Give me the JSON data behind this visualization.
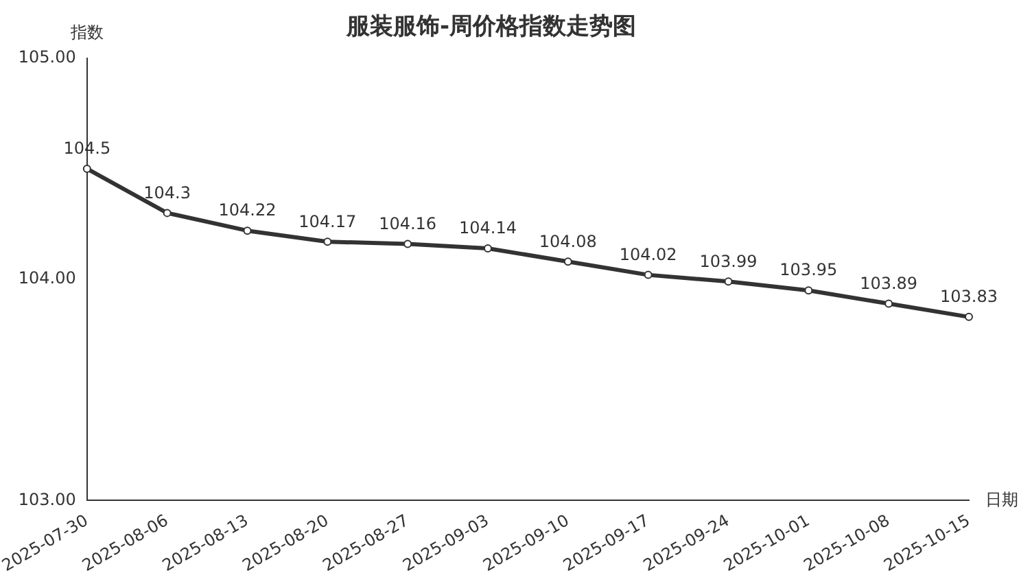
{
  "chart_data": {
    "type": "line",
    "title": "服装服饰-周价格指数走势图",
    "xlabel": "日期",
    "ylabel": "指数",
    "categories": [
      "2025-07-30",
      "2025-08-06",
      "2025-08-13",
      "2025-08-20",
      "2025-08-27",
      "2025-09-03",
      "2025-09-10",
      "2025-09-17",
      "2025-09-24",
      "2025-10-01",
      "2025-10-08",
      "2025-10-15"
    ],
    "series": [
      {
        "color": "#333333",
        "values": [
          104.5,
          104.3,
          104.22,
          104.17,
          104.16,
          104.14,
          104.08,
          104.02,
          103.99,
          103.95,
          103.89,
          103.83
        ]
      }
    ],
    "ylim": [
      103,
      105
    ],
    "yticks": [
      {
        "value": 103,
        "label": "103.00"
      },
      {
        "value": 104,
        "label": "104.00"
      },
      {
        "value": 105,
        "label": "105.00"
      }
    ],
    "grid": false,
    "legend": false,
    "marker": "circle",
    "line_style": "solid",
    "data_labels": true
  }
}
